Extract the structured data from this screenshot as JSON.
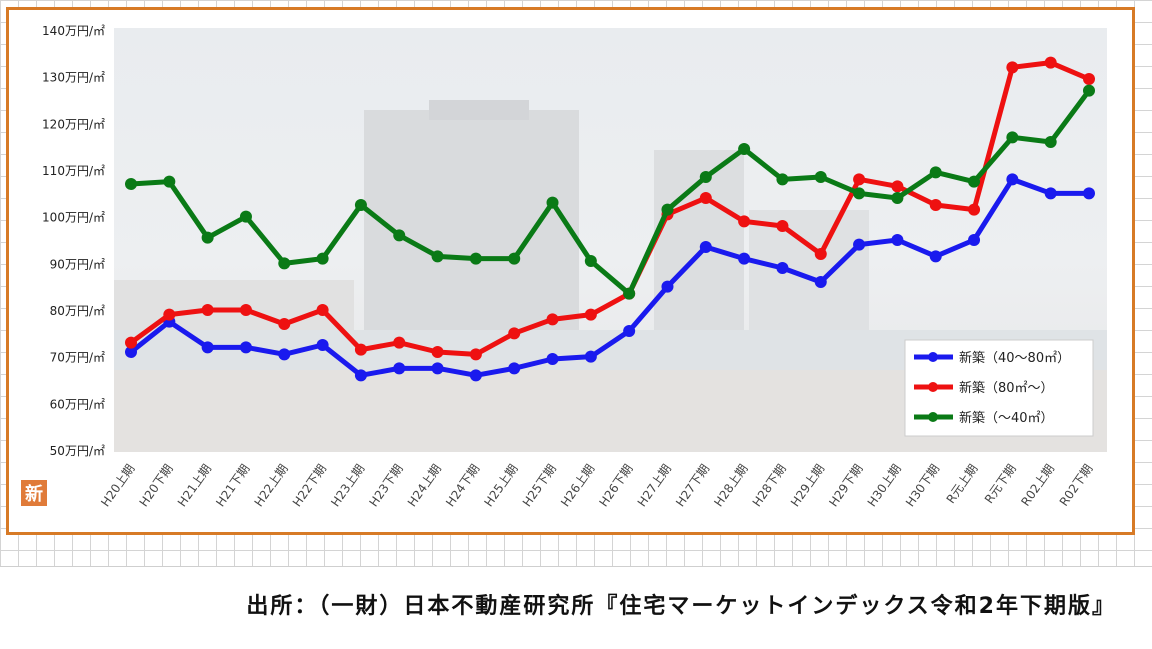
{
  "chart_data": {
    "type": "line",
    "categories": [
      "H20上期",
      "H20下期",
      "H21上期",
      "H21下期",
      "H22上期",
      "H22下期",
      "H23上期",
      "H23下期",
      "H24上期",
      "H24下期",
      "H25上期",
      "H25下期",
      "H26上期",
      "H26下期",
      "H27上期",
      "H27下期",
      "H28上期",
      "H28下期",
      "H29上期",
      "H29下期",
      "H30上期",
      "H30下期",
      "R元上期",
      "R元下期",
      "R02上期",
      "R02下期"
    ],
    "yticks": [
      "140万円/㎡",
      "130万円/㎡",
      "120万円/㎡",
      "110万円/㎡",
      "100万円/㎡",
      "90万円/㎡",
      "80万円/㎡",
      "70万円/㎡",
      "60万円/㎡",
      "50万円/㎡"
    ],
    "ylim": [
      50,
      140
    ],
    "series": [
      {
        "name": "新築（40～80㎡）",
        "color": "#1a1aee",
        "values": [
          71,
          77.5,
          72,
          72,
          70.5,
          72.5,
          66,
          67.5,
          67.5,
          66,
          67.5,
          69.5,
          70,
          75.5,
          85,
          93.5,
          91,
          89,
          86,
          94,
          95,
          91.5,
          95,
          108,
          105,
          105
        ]
      },
      {
        "name": "新築（80㎡～）",
        "color": "#ee1111",
        "values": [
          73,
          79,
          80,
          80,
          77,
          80,
          71.5,
          73,
          71,
          70.5,
          75,
          78,
          79,
          83.5,
          100.5,
          104,
          99,
          98,
          92,
          108,
          106.5,
          102.5,
          101.5,
          132,
          133,
          129.5
        ]
      },
      {
        "name": "新築（～40㎡）",
        "color": "#0a7a16",
        "values": [
          107,
          107.5,
          95.5,
          100,
          90,
          91,
          102.5,
          96,
          91.5,
          91,
          91,
          103,
          90.5,
          83.5,
          101.5,
          108.5,
          114.5,
          108,
          108.5,
          105,
          104,
          109.5,
          107.5,
          117,
          116,
          127
        ]
      }
    ]
  },
  "source_label": "出所：（一財）日本不動産研究所『住宅マーケットインデックス令和2年下期版』",
  "logo_text": "新"
}
